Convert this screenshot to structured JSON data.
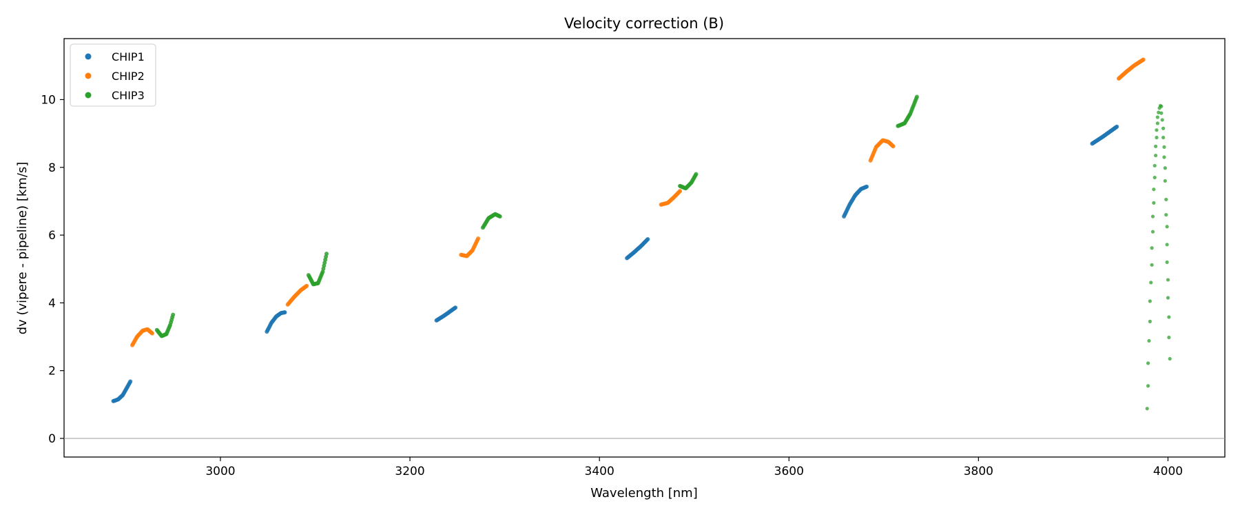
{
  "chart_data": {
    "type": "scatter",
    "title": "Velocity correction (B)",
    "xlabel": "Wavelength [nm]",
    "ylabel": "dv (vipere - pipeline) [km/s]",
    "xlim": [
      2835,
      4060
    ],
    "ylim": [
      -0.55,
      11.8
    ],
    "xticks": [
      3000,
      3200,
      3400,
      3600,
      3800,
      4000
    ],
    "yticks": [
      0,
      2,
      4,
      6,
      8,
      10
    ],
    "hline": 0,
    "grid": false,
    "legend": "top-left",
    "series": [
      {
        "name": "CHIP1",
        "color": "#1f77b4",
        "segments": [
          [
            [
              2887,
              1.1
            ],
            [
              2892,
              1.15
            ],
            [
              2897,
              1.28
            ],
            [
              2901,
              1.48
            ],
            [
              2905,
              1.68
            ]
          ],
          [
            [
              3049,
              3.15
            ],
            [
              3054,
              3.42
            ],
            [
              3059,
              3.6
            ],
            [
              3064,
              3.7
            ],
            [
              3068,
              3.72
            ]
          ],
          [
            [
              3228,
              3.48
            ],
            [
              3236,
              3.62
            ],
            [
              3243,
              3.76
            ],
            [
              3248,
              3.86
            ]
          ],
          [
            [
              3429,
              5.32
            ],
            [
              3436,
              5.48
            ],
            [
              3444,
              5.68
            ],
            [
              3451,
              5.88
            ]
          ],
          [
            [
              3658,
              6.55
            ],
            [
              3664,
              6.9
            ],
            [
              3670,
              7.18
            ],
            [
              3676,
              7.36
            ],
            [
              3682,
              7.43
            ]
          ],
          [
            [
              3920,
              8.7
            ],
            [
              3931,
              8.9
            ],
            [
              3942,
              9.12
            ],
            [
              3946,
              9.2
            ]
          ]
        ]
      },
      {
        "name": "CHIP2",
        "color": "#ff7f0e",
        "segments": [
          [
            [
              2907,
              2.75
            ],
            [
              2912,
              3.0
            ],
            [
              2918,
              3.18
            ],
            [
              2923,
              3.22
            ],
            [
              2928,
              3.1
            ]
          ],
          [
            [
              3071,
              3.95
            ],
            [
              3078,
              4.18
            ],
            [
              3085,
              4.38
            ],
            [
              3091,
              4.5
            ]
          ],
          [
            [
              3254,
              5.42
            ],
            [
              3260,
              5.38
            ],
            [
              3266,
              5.55
            ],
            [
              3272,
              5.9
            ]
          ],
          [
            [
              3465,
              6.9
            ],
            [
              3472,
              6.95
            ],
            [
              3478,
              7.1
            ],
            [
              3485,
              7.3
            ]
          ],
          [
            [
              3686,
              8.2
            ],
            [
              3692,
              8.6
            ],
            [
              3699,
              8.8
            ],
            [
              3705,
              8.75
            ],
            [
              3710,
              8.62
            ]
          ],
          [
            [
              3948,
              10.62
            ],
            [
              3956,
              10.82
            ],
            [
              3964,
              11.0
            ],
            [
              3974,
              11.18
            ]
          ]
        ]
      },
      {
        "name": "CHIP3",
        "color": "#2ca02c",
        "segments": [
          [
            [
              2933,
              3.2
            ],
            [
              2938,
              3.02
            ],
            [
              2943,
              3.08
            ],
            [
              2947,
              3.35
            ],
            [
              2950,
              3.65
            ]
          ],
          [
            [
              3093,
              4.82
            ],
            [
              3098,
              4.55
            ],
            [
              3103,
              4.58
            ],
            [
              3108,
              4.92
            ],
            [
              3112,
              5.45
            ]
          ],
          [
            [
              3277,
              6.22
            ],
            [
              3283,
              6.5
            ],
            [
              3290,
              6.62
            ],
            [
              3295,
              6.55
            ]
          ],
          [
            [
              3485,
              7.45
            ],
            [
              3491,
              7.38
            ],
            [
              3497,
              7.55
            ],
            [
              3502,
              7.8
            ]
          ],
          [
            [
              3715,
              9.22
            ],
            [
              3722,
              9.3
            ],
            [
              3728,
              9.58
            ],
            [
              3735,
              10.08
            ]
          ]
        ],
        "sparse_points": [
          [
            3978,
            0.88
          ],
          [
            3979,
            1.55
          ],
          [
            3979,
            2.22
          ],
          [
            3980,
            2.88
          ],
          [
            3981,
            3.45
          ],
          [
            3981,
            4.05
          ],
          [
            3982,
            4.6
          ],
          [
            3983,
            5.12
          ],
          [
            3983,
            5.62
          ],
          [
            3984,
            6.1
          ],
          [
            3984,
            6.55
          ],
          [
            3985,
            6.95
          ],
          [
            3985,
            7.35
          ],
          [
            3986,
            7.7
          ],
          [
            3986,
            8.05
          ],
          [
            3987,
            8.35
          ],
          [
            3987,
            8.62
          ],
          [
            3988,
            8.88
          ],
          [
            3988,
            9.1
          ],
          [
            3989,
            9.3
          ],
          [
            3989,
            9.48
          ],
          [
            3990,
            9.62
          ],
          [
            3991,
            9.75
          ],
          [
            3992,
            9.82
          ],
          [
            3993,
            9.8
          ],
          [
            3993,
            9.6
          ],
          [
            3994,
            9.4
          ],
          [
            3995,
            9.15
          ],
          [
            3995,
            8.88
          ],
          [
            3996,
            8.6
          ],
          [
            3996,
            8.3
          ],
          [
            3997,
            7.98
          ],
          [
            3997,
            7.6
          ],
          [
            3998,
            7.05
          ],
          [
            3998,
            6.6
          ],
          [
            3999,
            6.25
          ],
          [
            3999,
            5.72
          ],
          [
            3999,
            5.2
          ],
          [
            4000,
            4.68
          ],
          [
            4000,
            4.15
          ],
          [
            4001,
            3.58
          ],
          [
            4001,
            2.98
          ],
          [
            4002,
            2.35
          ]
        ]
      }
    ]
  }
}
